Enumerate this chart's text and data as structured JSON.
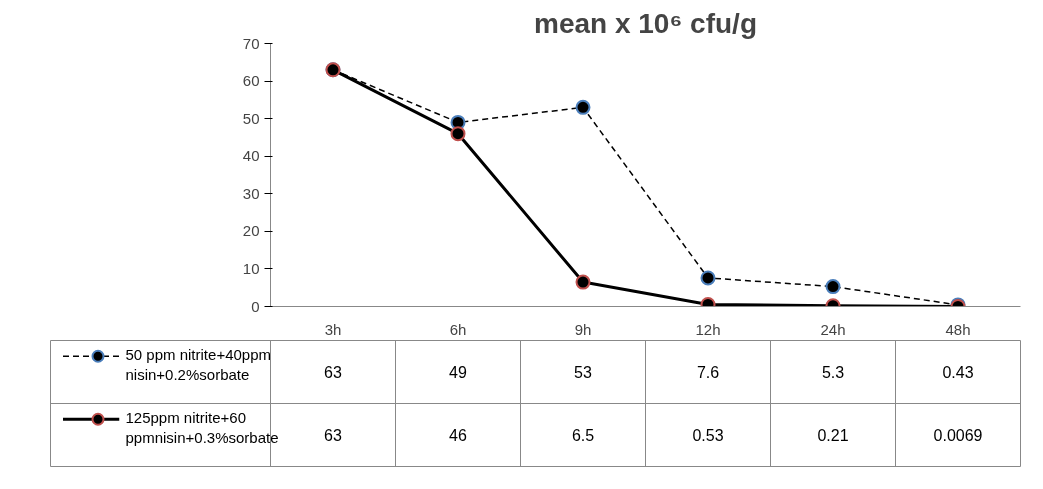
{
  "chart_data": {
    "type": "line",
    "title": "mean x 10⁶ cfu/g",
    "categories": [
      "3h",
      "6h",
      "9h",
      "12h",
      "24h",
      "48h"
    ],
    "ylim": [
      0,
      70
    ],
    "yticks": [
      0,
      10,
      20,
      30,
      40,
      50,
      60,
      70
    ],
    "grid": false,
    "legend": "bottom",
    "data_labels": true,
    "marker": "circle",
    "series": [
      {
        "name": "50 ppm nitrite+40ppm nisin+0.2%sorbate",
        "color": "#000000",
        "line_style": "dashed",
        "colors": [
          "#4a7ebb",
          "#4a7ebb",
          "#4a7ebb",
          "#4a7ebb",
          "#4a7ebb",
          "#4a7ebb"
        ],
        "values": [
          63,
          49,
          53,
          7.6,
          5.3,
          0.43
        ]
      },
      {
        "name": "125ppm nitrite+60 ppmnisin+0.3%sorbate",
        "color": "#000000",
        "line_style": "solid",
        "colors": [
          "#c0504d",
          "#c0504d",
          "#c0504d",
          "#c0504d",
          "#c0504d",
          "#c0504d"
        ],
        "values": [
          63,
          46,
          6.5,
          0.53,
          0.21,
          0.0069
        ]
      }
    ]
  }
}
